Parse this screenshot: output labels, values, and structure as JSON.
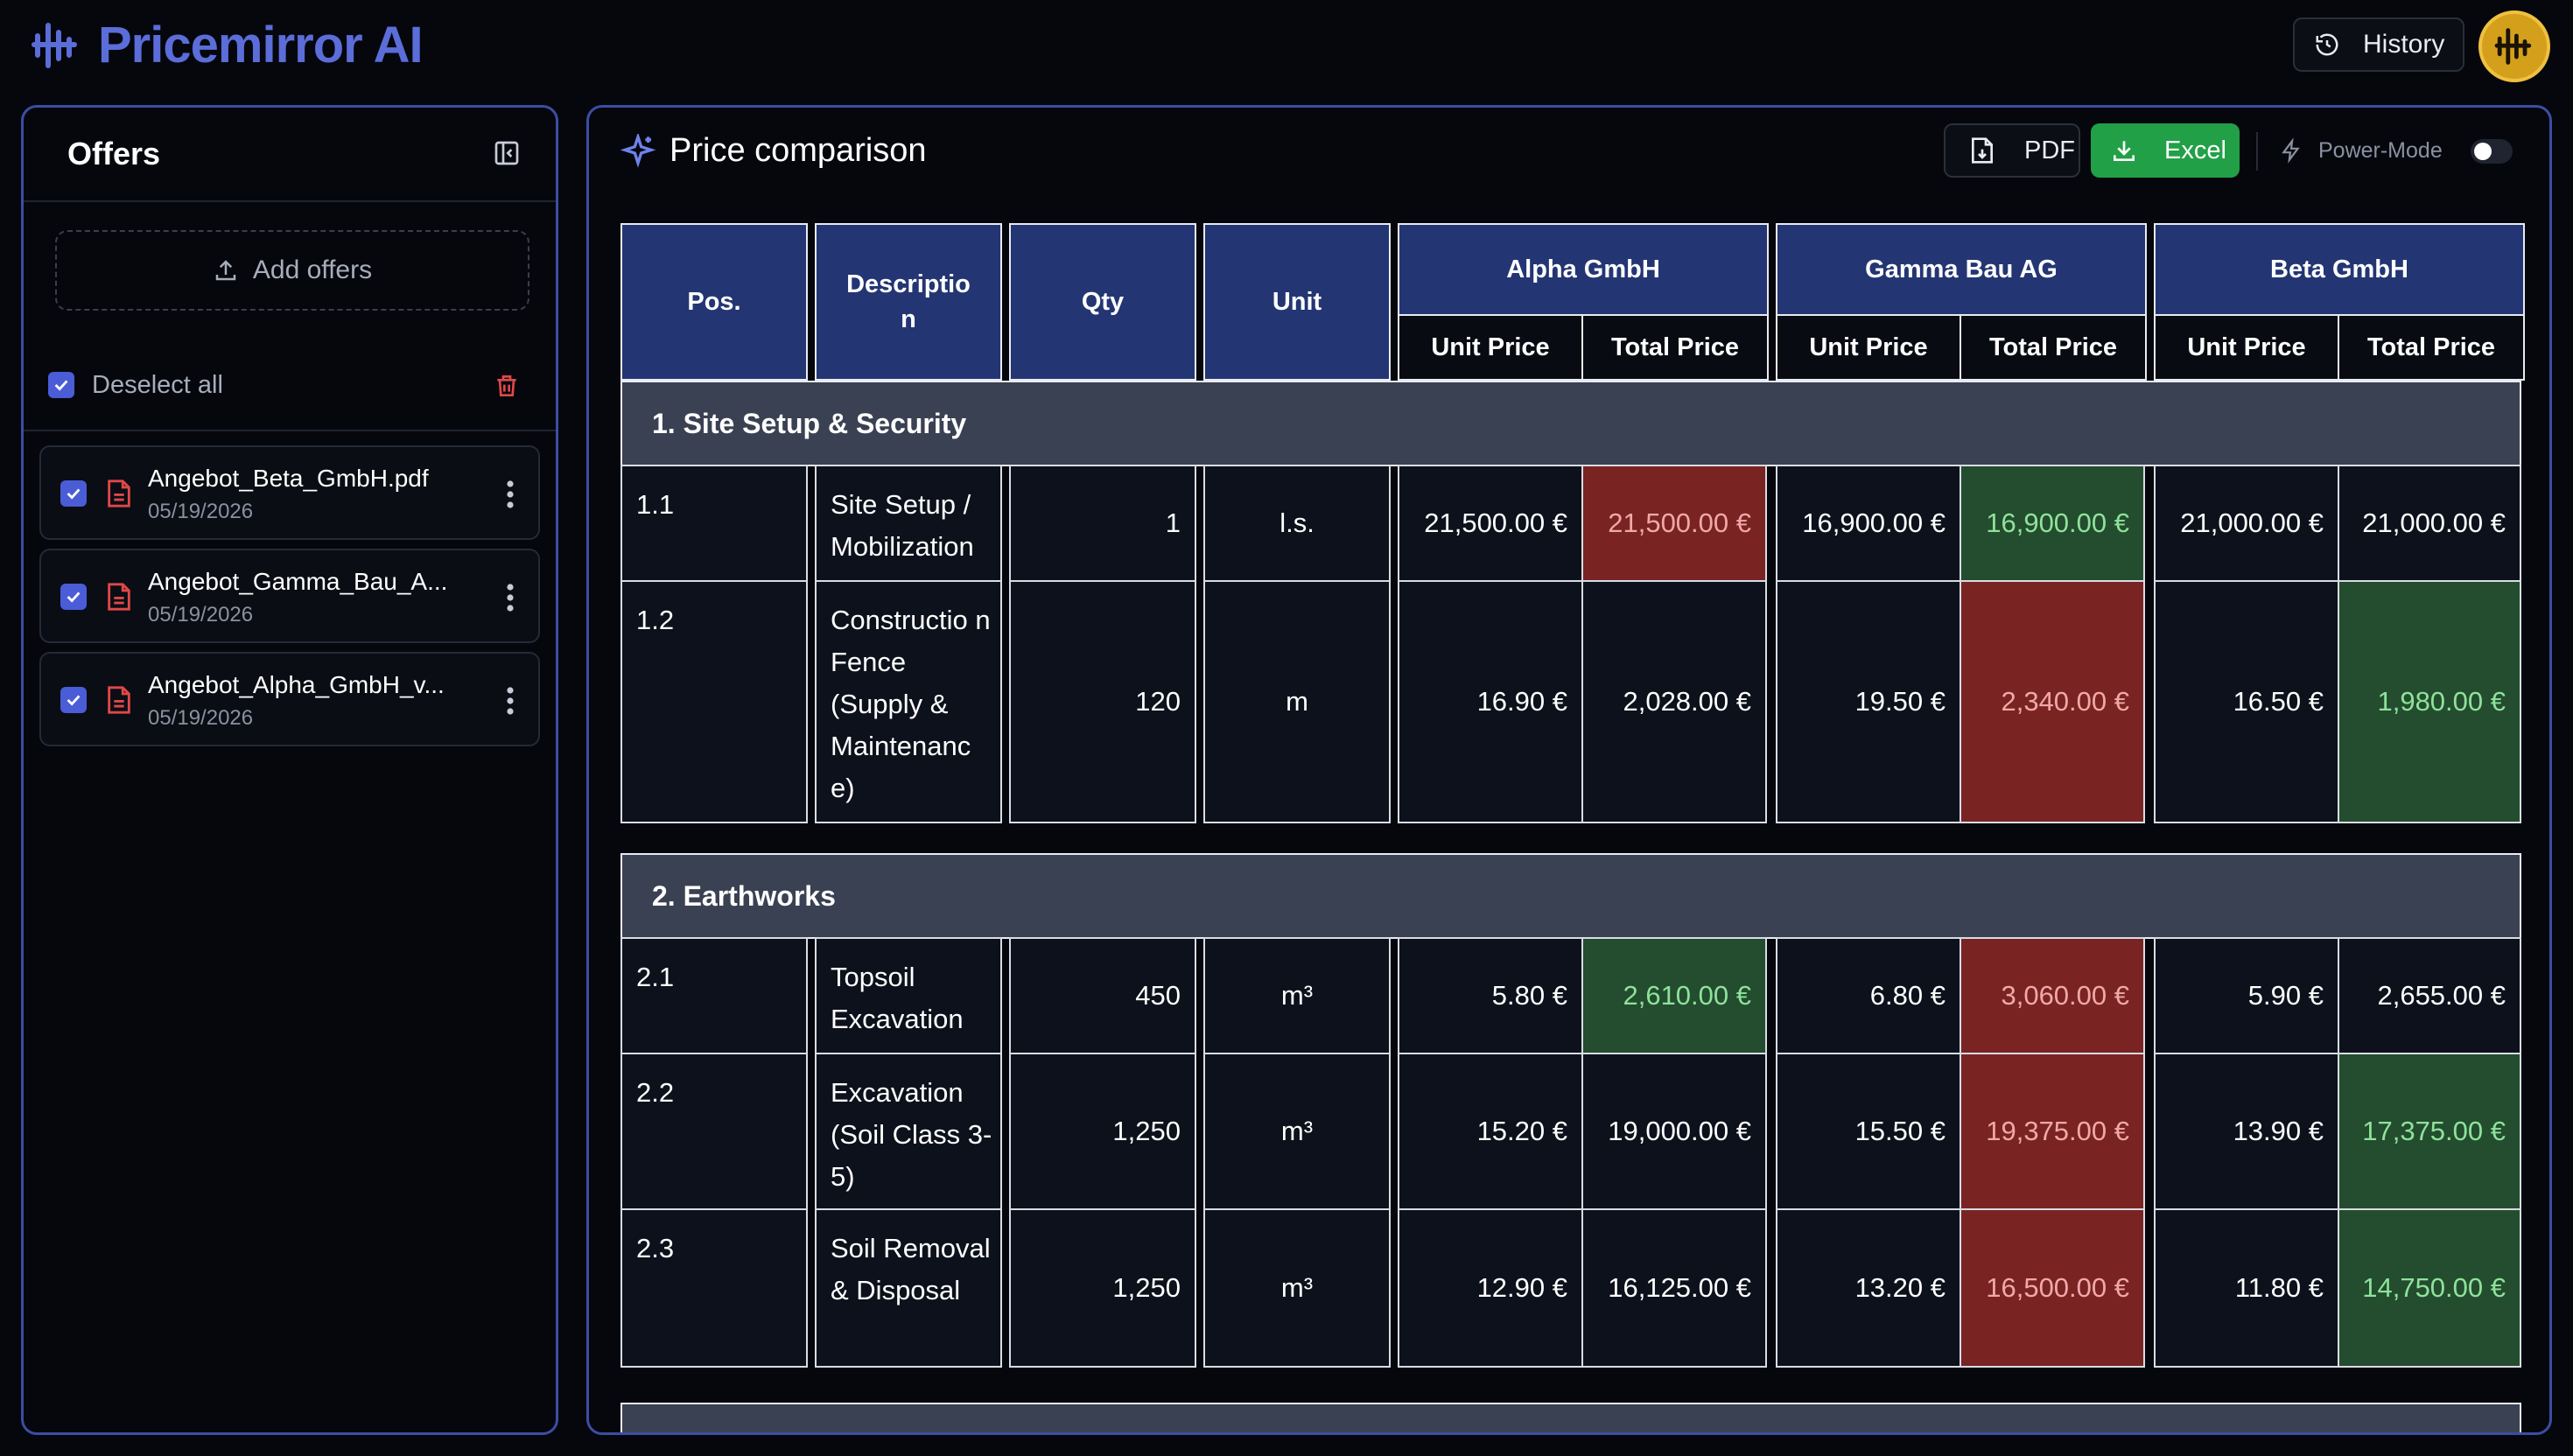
{
  "app": {
    "title": "Pricemirror AI",
    "history_label": "History"
  },
  "sidebar": {
    "title": "Offers",
    "add_label": "Add offers",
    "deselect_label": "Deselect all",
    "files": [
      {
        "name": "Angebot_Beta_GmbH.pdf",
        "date": "05/19/2026"
      },
      {
        "name": "Angebot_Gamma_Bau_A...",
        "date": "05/19/2026"
      },
      {
        "name": "Angebot_Alpha_GmbH_v...",
        "date": "05/19/2026"
      }
    ]
  },
  "main": {
    "title": "Price comparison",
    "pdf_label": "PDF",
    "excel_label": "Excel",
    "power_label": "Power-Mode",
    "power_on": false
  },
  "table": {
    "headers": {
      "pos": "Pos.",
      "desc": "Descriptio n",
      "qty": "Qty",
      "unit": "Unit"
    },
    "vendors": [
      "Alpha GmbH",
      "Gamma Bau AG",
      "Beta GmbH"
    ],
    "sub": {
      "unit_price": "Unit Price",
      "total_price": "Total Price"
    },
    "sections": [
      {
        "title": "1. Site Setup & Security",
        "rows": [
          {
            "pos": "1.1",
            "desc": "Site Setup / Mobilization",
            "qty": "1",
            "unit": "l.s.",
            "prices": [
              [
                "21,500.00 €",
                "21,500.00 €"
              ],
              [
                "16,900.00 €",
                "16,900.00 €"
              ],
              [
                "21,000.00 €",
                "21,000.00 €"
              ]
            ],
            "status": [
              "red",
              "green",
              ""
            ]
          },
          {
            "pos": "1.2",
            "desc": "Constructio n Fence (Supply & Maintenanc e)",
            "qty": "120",
            "unit": "m",
            "prices": [
              [
                "16.90 €",
                "2,028.00 €"
              ],
              [
                "19.50 €",
                "2,340.00 €"
              ],
              [
                "16.50 €",
                "1,980.00 €"
              ]
            ],
            "status": [
              "",
              "red",
              "green"
            ]
          }
        ]
      },
      {
        "title": "2. Earthworks",
        "rows": [
          {
            "pos": "2.1",
            "desc": "Topsoil Excavation",
            "qty": "450",
            "unit": "m³",
            "prices": [
              [
                "5.80 €",
                "2,610.00 €"
              ],
              [
                "6.80 €",
                "3,060.00 €"
              ],
              [
                "5.90 €",
                "2,655.00 €"
              ]
            ],
            "status": [
              "green",
              "red",
              ""
            ]
          },
          {
            "pos": "2.2",
            "desc": "Excavation (Soil Class 3-5)",
            "qty": "1,250",
            "unit": "m³",
            "prices": [
              [
                "15.20 €",
                "19,000.00 €"
              ],
              [
                "15.50 €",
                "19,375.00 €"
              ],
              [
                "13.90 €",
                "17,375.00 €"
              ]
            ],
            "status": [
              "",
              "red",
              "green"
            ]
          },
          {
            "pos": "2.3",
            "desc": "Soil Removal & Disposal",
            "qty": "1,250",
            "unit": "m³",
            "prices": [
              [
                "12.90 €",
                "16,125.00 €"
              ],
              [
                "13.20 €",
                "16,500.00 €"
              ],
              [
                "11.80 €",
                "14,750.00 €"
              ]
            ],
            "status": [
              "",
              "red",
              "green"
            ]
          }
        ]
      }
    ]
  },
  "colors": {
    "brand": "#5b6dd8",
    "header_blue": "#233573",
    "best": "#234d2e",
    "worst": "#7a2323",
    "excel_green": "#22a047"
  }
}
